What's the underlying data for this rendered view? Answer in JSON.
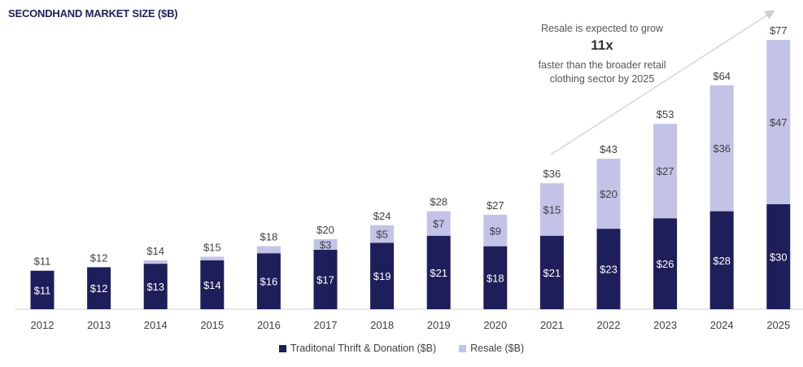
{
  "title": "SECONDHAND MARKET SIZE ($B)",
  "annotation": {
    "line1": "Resale is expected to grow",
    "highlight": "11x",
    "line2": "faster than the broader retail clothing sector by 2025"
  },
  "colors": {
    "thrift": "#1e1e5a",
    "resale": "#c2c3e6"
  },
  "chart_data": {
    "type": "bar",
    "stacked": true,
    "title": "SECONDHAND MARKET SIZE ($B)",
    "categories": [
      "2012",
      "2013",
      "2014",
      "2015",
      "2016",
      "2017",
      "2018",
      "2019",
      "2020",
      "2021",
      "2022",
      "2023",
      "2024",
      "2025"
    ],
    "series": [
      {
        "name": "Traditonal Thrift & Donation ($B)",
        "values": [
          11,
          12,
          13,
          14,
          16,
          17,
          19,
          21,
          18,
          21,
          23,
          26,
          28,
          30
        ],
        "labels": [
          "$11",
          "$12",
          "$13",
          "$14",
          "$16",
          "$17",
          "$19",
          "$21",
          "$18",
          "$21",
          "$23",
          "$26",
          "$28",
          "$30"
        ]
      },
      {
        "name": "Resale ($B)",
        "values": [
          0,
          0,
          1,
          1,
          2,
          3,
          5,
          7,
          9,
          15,
          20,
          27,
          36,
          47
        ],
        "labels": [
          "",
          "",
          "",
          "",
          "",
          "$3",
          "$5",
          "$7",
          "$9",
          "$15",
          "$20",
          "$27",
          "$36",
          "$47"
        ]
      }
    ],
    "totals": [
      "$11",
      "$12",
      "$14",
      "$15",
      "$18",
      "$20",
      "$24",
      "$28",
      "$27",
      "$36",
      "$43",
      "$53",
      "$64",
      "$77"
    ],
    "ylim": [
      0,
      77
    ],
    "grid": false,
    "legend": "bottom"
  }
}
